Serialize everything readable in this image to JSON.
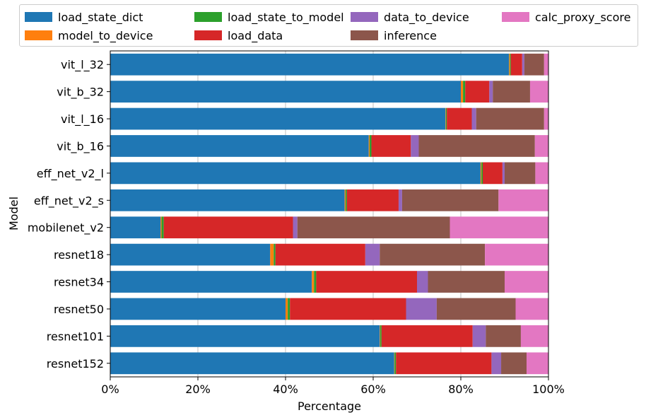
{
  "chart_data": {
    "type": "bar",
    "orientation": "horizontal",
    "stacked": true,
    "xlabel": "Percentage",
    "ylabel": "Model",
    "xlim": [
      0,
      100
    ],
    "xticks": [
      "0%",
      "20%",
      "40%",
      "60%",
      "80%",
      "100%"
    ],
    "grid": "vertical",
    "legend_position": "top",
    "categories": [
      "vit_l_32",
      "vit_b_32",
      "vit_l_16",
      "vit_b_16",
      "eff_net_v2_l",
      "eff_net_v2_s",
      "mobilenet_v2",
      "resnet18",
      "resnet34",
      "resnet50",
      "resnet101",
      "resnet152"
    ],
    "series": [
      {
        "name": "load_state_dict",
        "color": "#1f77b4",
        "values": [
          91.0,
          80.0,
          76.5,
          59.0,
          84.5,
          53.5,
          11.5,
          36.5,
          46.0,
          40.0,
          61.5,
          64.8
        ]
      },
      {
        "name": "model_to_device",
        "color": "#ff7f0e",
        "values": [
          0.2,
          0.5,
          0.1,
          0.2,
          0.2,
          0.2,
          0.2,
          0.8,
          0.5,
          0.5,
          0.1,
          0.1
        ]
      },
      {
        "name": "load_state_to_model",
        "color": "#2ca02c",
        "values": [
          0.2,
          0.5,
          0.2,
          0.4,
          0.3,
          0.3,
          0.5,
          0.4,
          0.5,
          0.5,
          0.3,
          0.3
        ]
      },
      {
        "name": "load_data",
        "color": "#d62728",
        "values": [
          2.6,
          5.5,
          5.7,
          9.0,
          4.5,
          11.8,
          29.5,
          20.5,
          23.0,
          26.5,
          20.8,
          21.8
        ]
      },
      {
        "name": "data_to_device",
        "color": "#9467bd",
        "values": [
          0.5,
          0.8,
          1.0,
          1.8,
          0.5,
          0.8,
          1.0,
          3.3,
          2.5,
          7.0,
          3.0,
          2.2
        ]
      },
      {
        "name": "inference",
        "color": "#8c564b",
        "values": [
          4.5,
          8.5,
          15.5,
          26.5,
          7.0,
          22.0,
          34.8,
          24.0,
          17.5,
          18.0,
          8.0,
          5.8
        ]
      },
      {
        "name": "calc_proxy_score",
        "color": "#e377c2",
        "values": [
          1.0,
          4.2,
          1.0,
          3.1,
          3.0,
          11.4,
          22.5,
          14.5,
          10.0,
          7.5,
          6.3,
          5.0
        ]
      }
    ]
  }
}
